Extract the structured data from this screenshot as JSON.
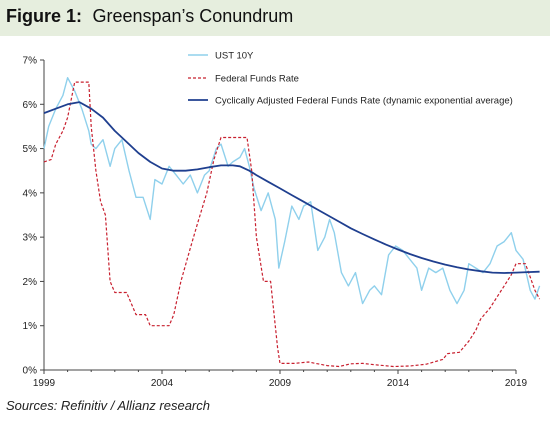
{
  "figure": {
    "label": "Figure 1:",
    "title": "Greenspan’s Conundrum",
    "source": "Sources:  Refinitiv / Allianz research"
  },
  "chart_data": {
    "type": "line",
    "title": "Greenspan’s Conundrum",
    "xlabel": "",
    "ylabel": "",
    "xlim": [
      1999,
      2019
    ],
    "ylim": [
      0,
      7
    ],
    "x_ticks": [
      "1999",
      "2004",
      "2009",
      "2014",
      "2019"
    ],
    "y_ticks": [
      "0%",
      "1%",
      "2%",
      "3%",
      "4%",
      "5%",
      "6%",
      "7%"
    ],
    "legend_position": "top-right",
    "grid": false,
    "series": [
      {
        "name": "UST 10Y",
        "color": "#8fd0ec",
        "style": "solid",
        "points": [
          [
            1999.0,
            5.0
          ],
          [
            1999.2,
            5.5
          ],
          [
            1999.5,
            5.9
          ],
          [
            1999.8,
            6.2
          ],
          [
            2000.0,
            6.6
          ],
          [
            2000.3,
            6.3
          ],
          [
            2000.6,
            5.9
          ],
          [
            2000.9,
            5.4
          ],
          [
            2001.0,
            5.1
          ],
          [
            2001.2,
            5.0
          ],
          [
            2001.5,
            5.2
          ],
          [
            2001.8,
            4.6
          ],
          [
            2002.0,
            5.0
          ],
          [
            2002.3,
            5.2
          ],
          [
            2002.6,
            4.5
          ],
          [
            2002.9,
            3.9
          ],
          [
            2003.2,
            3.9
          ],
          [
            2003.5,
            3.4
          ],
          [
            2003.7,
            4.3
          ],
          [
            2004.0,
            4.2
          ],
          [
            2004.3,
            4.6
          ],
          [
            2004.6,
            4.4
          ],
          [
            2004.9,
            4.2
          ],
          [
            2005.2,
            4.4
          ],
          [
            2005.5,
            4.0
          ],
          [
            2005.8,
            4.4
          ],
          [
            2006.0,
            4.5
          ],
          [
            2006.3,
            5.0
          ],
          [
            2006.5,
            5.1
          ],
          [
            2006.8,
            4.6
          ],
          [
            2007.0,
            4.7
          ],
          [
            2007.3,
            4.8
          ],
          [
            2007.5,
            5.0
          ],
          [
            2007.7,
            4.6
          ],
          [
            2007.9,
            4.1
          ],
          [
            2008.2,
            3.6
          ],
          [
            2008.5,
            4.0
          ],
          [
            2008.8,
            3.4
          ],
          [
            2008.95,
            2.3
          ],
          [
            2009.2,
            2.9
          ],
          [
            2009.5,
            3.7
          ],
          [
            2009.8,
            3.4
          ],
          [
            2010.0,
            3.7
          ],
          [
            2010.3,
            3.8
          ],
          [
            2010.6,
            2.7
          ],
          [
            2010.9,
            3.0
          ],
          [
            2011.1,
            3.4
          ],
          [
            2011.3,
            3.1
          ],
          [
            2011.6,
            2.2
          ],
          [
            2011.9,
            1.9
          ],
          [
            2012.2,
            2.2
          ],
          [
            2012.5,
            1.5
          ],
          [
            2012.8,
            1.8
          ],
          [
            2013.0,
            1.9
          ],
          [
            2013.3,
            1.7
          ],
          [
            2013.6,
            2.6
          ],
          [
            2013.9,
            2.8
          ],
          [
            2014.2,
            2.7
          ],
          [
            2014.5,
            2.5
          ],
          [
            2014.8,
            2.3
          ],
          [
            2015.0,
            1.8
          ],
          [
            2015.3,
            2.3
          ],
          [
            2015.6,
            2.2
          ],
          [
            2015.9,
            2.3
          ],
          [
            2016.2,
            1.8
          ],
          [
            2016.5,
            1.5
          ],
          [
            2016.8,
            1.8
          ],
          [
            2017.0,
            2.4
          ],
          [
            2017.3,
            2.3
          ],
          [
            2017.6,
            2.2
          ],
          [
            2017.9,
            2.4
          ],
          [
            2018.2,
            2.8
          ],
          [
            2018.5,
            2.9
          ],
          [
            2018.8,
            3.1
          ],
          [
            2019.0,
            2.7
          ],
          [
            2019.3,
            2.5
          ],
          [
            2019.6,
            1.8
          ],
          [
            2019.8,
            1.6
          ],
          [
            2020.0,
            1.9
          ]
        ]
      },
      {
        "name": "Federal Funds Rate",
        "color": "#c8202f",
        "style": "dashed",
        "points": [
          [
            1999.0,
            4.7
          ],
          [
            1999.3,
            4.75
          ],
          [
            1999.5,
            5.1
          ],
          [
            1999.8,
            5.4
          ],
          [
            2000.0,
            5.7
          ],
          [
            2000.3,
            6.5
          ],
          [
            2000.6,
            6.5
          ],
          [
            2000.9,
            6.5
          ],
          [
            2001.0,
            5.5
          ],
          [
            2001.2,
            4.5
          ],
          [
            2001.4,
            3.8
          ],
          [
            2001.6,
            3.5
          ],
          [
            2001.8,
            2.0
          ],
          [
            2002.0,
            1.75
          ],
          [
            2002.5,
            1.75
          ],
          [
            2002.9,
            1.25
          ],
          [
            2003.3,
            1.25
          ],
          [
            2003.5,
            1.0
          ],
          [
            2003.9,
            1.0
          ],
          [
            2004.3,
            1.0
          ],
          [
            2004.5,
            1.25
          ],
          [
            2004.8,
            2.0
          ],
          [
            2005.2,
            2.75
          ],
          [
            2005.5,
            3.3
          ],
          [
            2005.9,
            4.0
          ],
          [
            2006.2,
            4.75
          ],
          [
            2006.5,
            5.25
          ],
          [
            2006.9,
            5.25
          ],
          [
            2007.3,
            5.25
          ],
          [
            2007.6,
            5.25
          ],
          [
            2007.8,
            4.5
          ],
          [
            2008.0,
            3.0
          ],
          [
            2008.3,
            2.0
          ],
          [
            2008.6,
            2.0
          ],
          [
            2008.9,
            0.5
          ],
          [
            2009.0,
            0.15
          ],
          [
            2009.6,
            0.15
          ],
          [
            2010.2,
            0.18
          ],
          [
            2011.0,
            0.1
          ],
          [
            2011.5,
            0.08
          ],
          [
            2012.0,
            0.14
          ],
          [
            2012.5,
            0.15
          ],
          [
            2013.0,
            0.12
          ],
          [
            2013.8,
            0.08
          ],
          [
            2014.5,
            0.09
          ],
          [
            2015.2,
            0.13
          ],
          [
            2015.9,
            0.24
          ],
          [
            2016.1,
            0.37
          ],
          [
            2016.6,
            0.4
          ],
          [
            2017.0,
            0.65
          ],
          [
            2017.3,
            0.9
          ],
          [
            2017.5,
            1.15
          ],
          [
            2017.9,
            1.4
          ],
          [
            2018.2,
            1.65
          ],
          [
            2018.5,
            1.9
          ],
          [
            2018.8,
            2.15
          ],
          [
            2019.0,
            2.4
          ],
          [
            2019.4,
            2.4
          ],
          [
            2019.6,
            2.1
          ],
          [
            2019.8,
            1.8
          ],
          [
            2020.0,
            1.6
          ]
        ]
      },
      {
        "name": "Cyclically Adjusted Federal Funds Rate (dynamic exponential average)",
        "color": "#1f3f8f",
        "style": "solid",
        "points": [
          [
            1999.0,
            5.8
          ],
          [
            1999.5,
            5.9
          ],
          [
            2000.0,
            6.0
          ],
          [
            2000.5,
            6.05
          ],
          [
            2001.0,
            5.9
          ],
          [
            2001.5,
            5.7
          ],
          [
            2002.0,
            5.4
          ],
          [
            2002.5,
            5.15
          ],
          [
            2003.0,
            4.9
          ],
          [
            2003.5,
            4.7
          ],
          [
            2004.0,
            4.55
          ],
          [
            2004.5,
            4.5
          ],
          [
            2005.0,
            4.5
          ],
          [
            2005.5,
            4.53
          ],
          [
            2006.0,
            4.58
          ],
          [
            2006.5,
            4.62
          ],
          [
            2007.0,
            4.62
          ],
          [
            2007.3,
            4.6
          ],
          [
            2007.7,
            4.5
          ],
          [
            2008.0,
            4.4
          ],
          [
            2008.5,
            4.25
          ],
          [
            2009.0,
            4.1
          ],
          [
            2009.5,
            3.95
          ],
          [
            2010.0,
            3.8
          ],
          [
            2010.5,
            3.65
          ],
          [
            2011.0,
            3.5
          ],
          [
            2011.5,
            3.35
          ],
          [
            2012.0,
            3.2
          ],
          [
            2012.5,
            3.07
          ],
          [
            2013.0,
            2.95
          ],
          [
            2013.5,
            2.83
          ],
          [
            2014.0,
            2.72
          ],
          [
            2014.5,
            2.62
          ],
          [
            2015.0,
            2.53
          ],
          [
            2015.5,
            2.45
          ],
          [
            2016.0,
            2.38
          ],
          [
            2016.5,
            2.32
          ],
          [
            2017.0,
            2.27
          ],
          [
            2017.5,
            2.23
          ],
          [
            2018.0,
            2.2
          ],
          [
            2018.5,
            2.19
          ],
          [
            2019.0,
            2.2
          ],
          [
            2019.5,
            2.21
          ],
          [
            2020.0,
            2.22
          ]
        ]
      }
    ]
  }
}
